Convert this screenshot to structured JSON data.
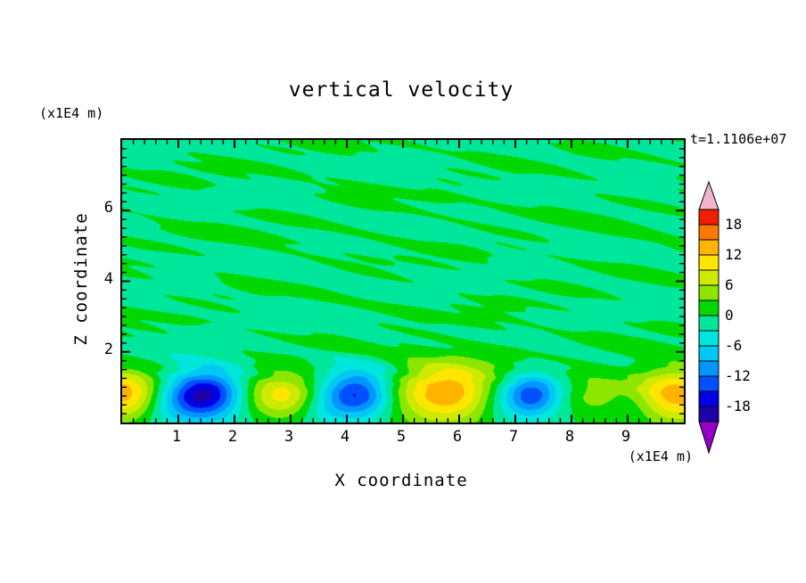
{
  "chart_data": {
    "type": "heatmap",
    "title": "vertical velocity",
    "time_annotation": "t=1.1106e+07",
    "xlabel": "X coordinate",
    "ylabel": "Z coordinate",
    "x_unit": "(x1E4 m)",
    "z_unit": "(x1E4 m)",
    "x_range": [
      0,
      10
    ],
    "z_range": [
      0,
      8
    ],
    "x_major_ticks": [
      1,
      2,
      3,
      4,
      5,
      6,
      7,
      8,
      9
    ],
    "x_minor_step": 0.2,
    "z_major_ticks": [
      2,
      4,
      6
    ],
    "z_minor_step": 0.25,
    "levels_min": -21,
    "levels_step": 3,
    "colors": [
      "#1c00aa",
      "#0000e6",
      "#0050ff",
      "#0096ff",
      "#00c8f5",
      "#00e6dc",
      "#00e69b",
      "#00d800",
      "#8ce600",
      "#cdeb00",
      "#ffe600",
      "#ffb400",
      "#ff7800",
      "#f01e00"
    ],
    "under_color": "#9400c8",
    "over_color": "#f2b4cf",
    "colorbar_labels": [
      "18",
      "12",
      "6",
      "0",
      "-6",
      "-12",
      "-18"
    ],
    "field": {
      "noise_bias": -0.4,
      "noise_taper": [
        0.55,
        1.45
      ],
      "noise_modes": [
        [
          1.15,
          0.7,
          4.6,
          0.8,
          1.9,
          1.3,
          2.1
        ],
        [
          0.9,
          1.6,
          6.8,
          2.9,
          0.8,
          2.6,
          0.5
        ],
        [
          0.7,
          2.8,
          9.4,
          5.1,
          1.3,
          3.7,
          3.8
        ],
        [
          0.55,
          4.9,
          12.6,
          1.2,
          2.3,
          5.3,
          5.6
        ]
      ],
      "blobs": [
        [
          0.05,
          0.8,
          15,
          0.5,
          0.5
        ],
        [
          0.9,
          0.55,
          -5,
          0.45,
          0.45
        ],
        [
          1.5,
          0.8,
          -14,
          0.42,
          0.45
        ],
        [
          1.55,
          0.8,
          -4,
          0.95,
          0.75
        ],
        [
          2.85,
          0.8,
          13,
          0.52,
          0.48
        ],
        [
          3.55,
          0.5,
          -4,
          0.35,
          0.4
        ],
        [
          4.2,
          0.8,
          -13,
          0.4,
          0.45
        ],
        [
          4.2,
          0.8,
          -3.5,
          0.85,
          0.7
        ],
        [
          5.8,
          0.85,
          13,
          0.68,
          0.58
        ],
        [
          5.8,
          0.85,
          3,
          1.1,
          0.8
        ],
        [
          6.75,
          0.6,
          -4.5,
          0.45,
          0.5
        ],
        [
          7.3,
          0.78,
          -11,
          0.34,
          0.4
        ],
        [
          7.3,
          0.78,
          -3.5,
          0.75,
          0.6
        ],
        [
          8.35,
          0.8,
          5,
          0.45,
          0.45
        ],
        [
          9.1,
          0.55,
          -4,
          0.35,
          0.4
        ],
        [
          9.85,
          0.8,
          14,
          0.6,
          0.55
        ]
      ]
    }
  }
}
